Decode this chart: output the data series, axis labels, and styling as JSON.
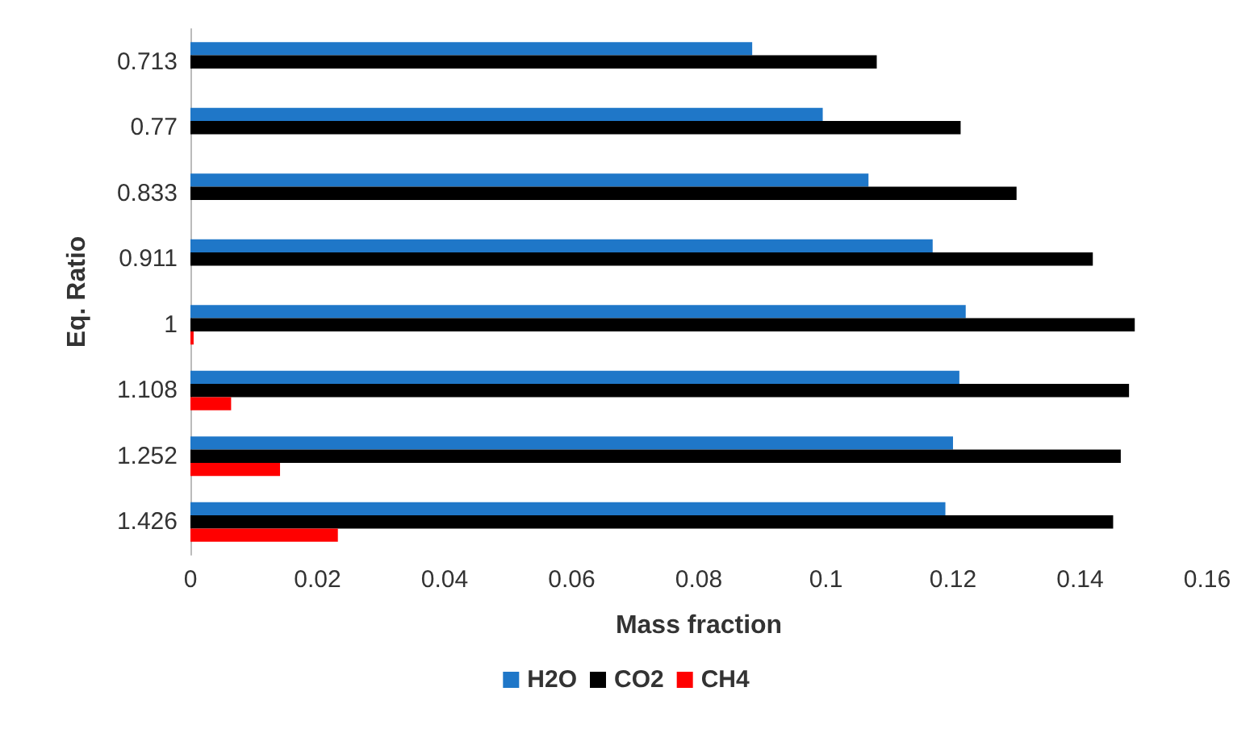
{
  "chart_data": {
    "type": "bar",
    "orientation": "horizontal",
    "xlabel": "Mass fraction",
    "ylabel": "Eq. Ratio",
    "categories": [
      "0.713",
      "0.77",
      "0.833",
      "0.911",
      "1",
      "1.108",
      "1.252",
      "1.426"
    ],
    "series": [
      {
        "name": "H2O",
        "color": "#1f77c8",
        "values": [
          0.0884,
          0.0995,
          0.1067,
          0.1168,
          0.122,
          0.121,
          0.12,
          0.1188
        ]
      },
      {
        "name": "CO2",
        "color": "#000000",
        "values": [
          0.108,
          0.1212,
          0.13,
          0.142,
          0.1486,
          0.1477,
          0.1464,
          0.1452
        ]
      },
      {
        "name": "CH4",
        "color": "#ff0000",
        "values": [
          null,
          null,
          null,
          null,
          0.0005,
          0.0064,
          0.0141,
          0.0232
        ]
      }
    ],
    "xlim": [
      0,
      0.16
    ],
    "xticks": [
      0,
      0.02,
      0.04,
      0.06,
      0.08,
      0.1,
      0.12,
      0.14,
      0.16
    ],
    "grid": false,
    "legend": "bottom"
  }
}
